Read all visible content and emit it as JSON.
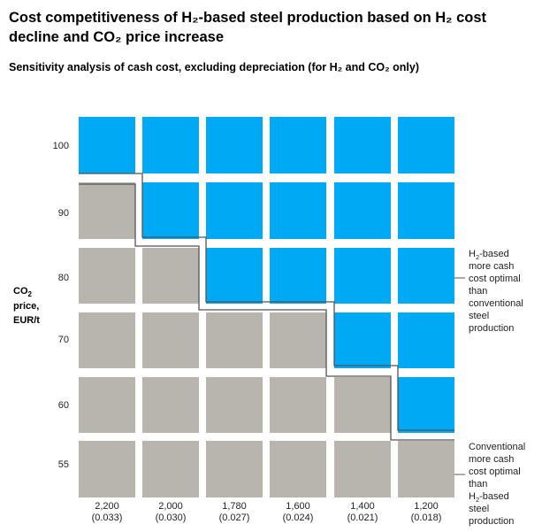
{
  "title_line1": "Cost competitiveness of H₂-based steel production based on H₂ cost",
  "title_line2": "decline and CO₂ price increase",
  "subtitle": "Sensitivity analysis of cash cost, excluding depreciation (for H₂ and CO₂ only)",
  "colors": {
    "h2_optimal": "#00A9F4",
    "conventional_optimal": "#B8B4AE",
    "boundary": "#555555"
  },
  "chart_data": {
    "type": "heatmap",
    "title": "Cost competitiveness of H₂-based steel production based on H₂ cost decline and CO₂ price increase",
    "subtitle": "Sensitivity analysis of cash cost, excluding depreciation (for H₂ and CO₂ only)",
    "ylabel": [
      "CO",
      "2",
      "price,",
      "EUR/t"
    ],
    "x_categories": [
      {
        "line1": "2,200",
        "line2": "(0.033)"
      },
      {
        "line1": "2,000",
        "line2": "(0.030)"
      },
      {
        "line1": "1,780",
        "line2": "(0.027)"
      },
      {
        "line1": "1,600",
        "line2": "(0.024)"
      },
      {
        "line1": "1,400",
        "line2": "(0.021)"
      },
      {
        "line1": "1,200",
        "line2": "(0.018)"
      }
    ],
    "y_categories": [
      "100",
      "90",
      "80",
      "70",
      "60",
      "55"
    ],
    "cells": [
      [
        "H2",
        "H2",
        "H2",
        "H2",
        "H2",
        "H2"
      ],
      [
        "conv",
        "H2",
        "H2",
        "H2",
        "H2",
        "H2"
      ],
      [
        "conv",
        "conv",
        "H2",
        "H2",
        "H2",
        "H2"
      ],
      [
        "conv",
        "conv",
        "conv",
        "conv",
        "H2",
        "H2"
      ],
      [
        "conv",
        "conv",
        "conv",
        "conv",
        "conv",
        "H2"
      ],
      [
        "conv",
        "conv",
        "conv",
        "conv",
        "conv",
        "conv"
      ]
    ],
    "legend": {
      "h2_optimal": [
        "H",
        "2",
        "-based",
        "more cash",
        "cost optimal",
        "than",
        "conventional",
        "steel",
        "production"
      ],
      "conventional_optimal": [
        "Conventional",
        "more cash",
        "cost optimal",
        "than",
        "H",
        "2",
        "-based",
        "steel",
        "production"
      ]
    }
  }
}
